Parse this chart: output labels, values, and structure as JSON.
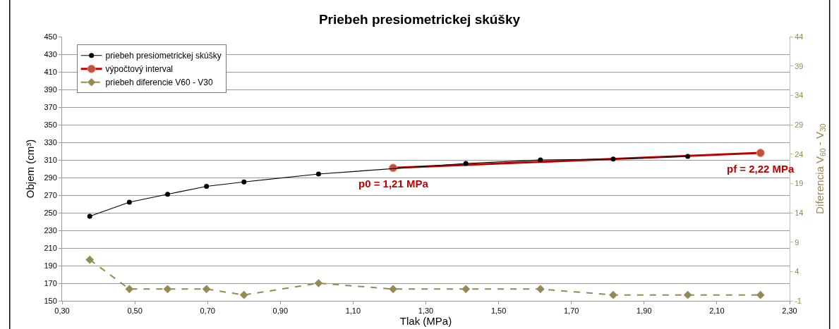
{
  "chart_data": {
    "type": "line",
    "title": "Priebeh presiometrickej skúšky",
    "xlabel": "Tlak (MPa)",
    "ylabel": "Objem (cm³)",
    "y2label": "Diferencia V$_{60}$ - V$_{30}$",
    "series": [
      {
        "name": "priebeh presiometrickej skúšky",
        "color": "#000000",
        "marker": "circle",
        "line_style": "solid",
        "x": [
          0.376,
          0.485,
          0.59,
          0.697,
          0.8,
          1.005,
          1.41,
          1.615,
          1.815,
          2.02
        ],
        "values": [
          246,
          262,
          271,
          280,
          285,
          294,
          306,
          310,
          311,
          314
        ]
      },
      {
        "name": "výpočtový interval",
        "color": "#c00000",
        "marker": "circle",
        "line_style": "solid",
        "x": [
          1.21,
          2.22
        ],
        "values": [
          301,
          318
        ]
      },
      {
        "name": "priebeh diferencie V60 - V30",
        "color": "#948a54",
        "marker": "diamond",
        "line_style": "dashed",
        "axis": "y2",
        "x": [
          0.376,
          0.485,
          0.59,
          0.697,
          0.8,
          1.005,
          1.21,
          1.41,
          1.615,
          1.815,
          2.02,
          2.22
        ],
        "values": [
          6,
          1,
          1,
          1,
          0,
          2,
          1,
          1,
          1,
          0,
          0,
          0
        ]
      }
    ],
    "annotations": [
      {
        "text": "p0 = 1,21 MPa",
        "x": 1.21,
        "y": 301
      },
      {
        "text": "pf = 2,22 MPa",
        "x": 2.22,
        "y": 318
      }
    ],
    "xlim": [
      0.3,
      2.3
    ],
    "xticks": [
      {
        "value": 0.3,
        "label": "0,30"
      },
      {
        "value": 0.5,
        "label": "0,50"
      },
      {
        "value": 0.7,
        "label": "0,70"
      },
      {
        "value": 0.9,
        "label": "0,90"
      },
      {
        "value": 1.1,
        "label": "1,10"
      },
      {
        "value": 1.3,
        "label": "1,30"
      },
      {
        "value": 1.5,
        "label": "1,50"
      },
      {
        "value": 1.7,
        "label": "1,70"
      },
      {
        "value": 1.9,
        "label": "1,90"
      },
      {
        "value": 2.1,
        "label": "2,10"
      },
      {
        "value": 2.3,
        "label": "2,30"
      }
    ],
    "ylim": [
      150,
      450
    ],
    "yticks": [
      150,
      170,
      190,
      210,
      230,
      250,
      270,
      290,
      310,
      330,
      350,
      370,
      390,
      410,
      430,
      450
    ],
    "y2lim": [
      -1,
      44
    ],
    "y2ticks": [
      -1,
      4,
      9,
      14,
      19,
      24,
      29,
      34,
      39,
      44
    ],
    "grid": "y",
    "legend": "top left"
  }
}
